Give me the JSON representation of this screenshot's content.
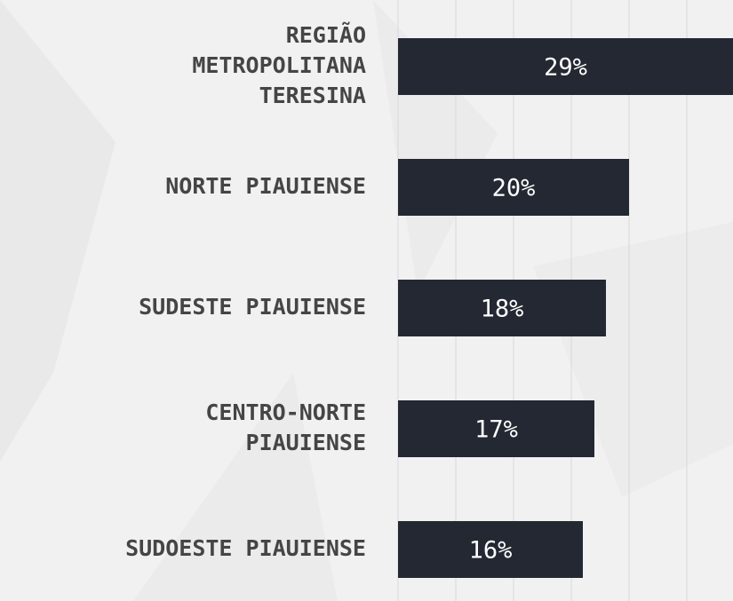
{
  "chart_data": {
    "type": "barh",
    "categories": [
      "REGIÃO\nMETROPOLITANA\nTERESINA",
      "NORTE PIAUIENSE",
      "SUDESTE PIAUIENSE",
      "CENTRO-NORTE\nPIAUIENSE",
      "SUDOESTE PIAUIENSE"
    ],
    "values": [
      29,
      20,
      18,
      17,
      16
    ],
    "value_labels": [
      "29%",
      "20%",
      "18%",
      "17%",
      "16%"
    ],
    "color": "#232832",
    "xlim": [
      0,
      29
    ],
    "xticks": [
      0,
      5,
      10,
      15,
      20,
      25
    ],
    "grid": true
  }
}
